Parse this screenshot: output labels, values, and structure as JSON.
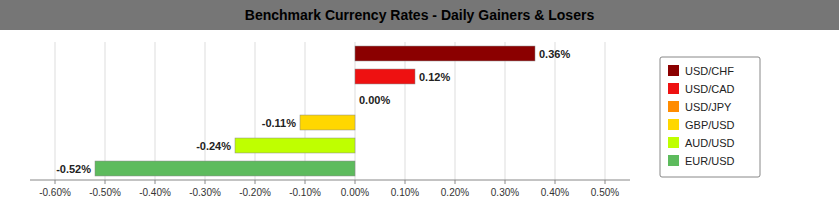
{
  "chart_data": {
    "type": "bar",
    "orientation": "horizontal",
    "title": "Benchmark Currency Rates - Daily Gainers & Losers",
    "categories": [
      "USD/CHF",
      "USD/CAD",
      "USD/JPY",
      "GBP/USD",
      "AUD/USD",
      "EUR/USD"
    ],
    "values": [
      0.36,
      0.12,
      0.0,
      -0.11,
      -0.24,
      -0.52
    ],
    "value_labels": [
      "0.36%",
      "0.12%",
      "0.00%",
      "-0.11%",
      "-0.24%",
      "-0.52%"
    ],
    "colors": [
      "#8B0000",
      "#EE1111",
      "#FF8C00",
      "#FFD700",
      "#BFFF00",
      "#5DBB5D"
    ],
    "xlim": [
      -0.65,
      0.55
    ],
    "xticks": [
      {
        "value": -0.6,
        "label": "-0.60%"
      },
      {
        "value": -0.5,
        "label": "-0.50%"
      },
      {
        "value": -0.4,
        "label": "-0.40%"
      },
      {
        "value": -0.3,
        "label": "-0.30%"
      },
      {
        "value": -0.2,
        "label": "-0.20%"
      },
      {
        "value": -0.1,
        "label": "-0.10%"
      },
      {
        "value": 0.0,
        "label": "0.00%"
      },
      {
        "value": 0.1,
        "label": "0.10%"
      },
      {
        "value": 0.2,
        "label": "0.20%"
      },
      {
        "value": 0.3,
        "label": "0.30%"
      },
      {
        "value": 0.4,
        "label": "0.40%"
      },
      {
        "value": 0.5,
        "label": "0.50%"
      }
    ],
    "grid": true,
    "data_labels": true,
    "tick_labels": "x",
    "legend": "right"
  }
}
